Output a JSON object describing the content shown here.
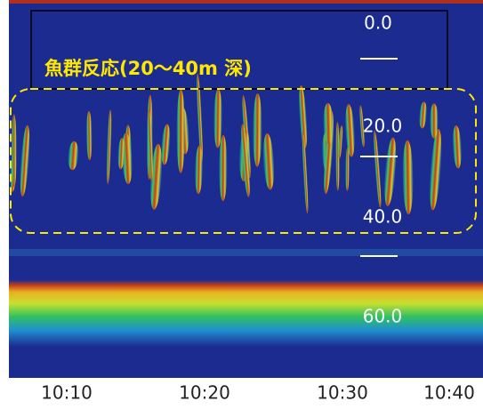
{
  "annotation": "魚群反応(20～40m 深)",
  "depth_labels": [
    "0.0",
    "20.0",
    "40.0",
    "60.0"
  ],
  "time_labels": [
    "10:10",
    "10:20",
    "10:30",
    "10:40"
  ]
}
